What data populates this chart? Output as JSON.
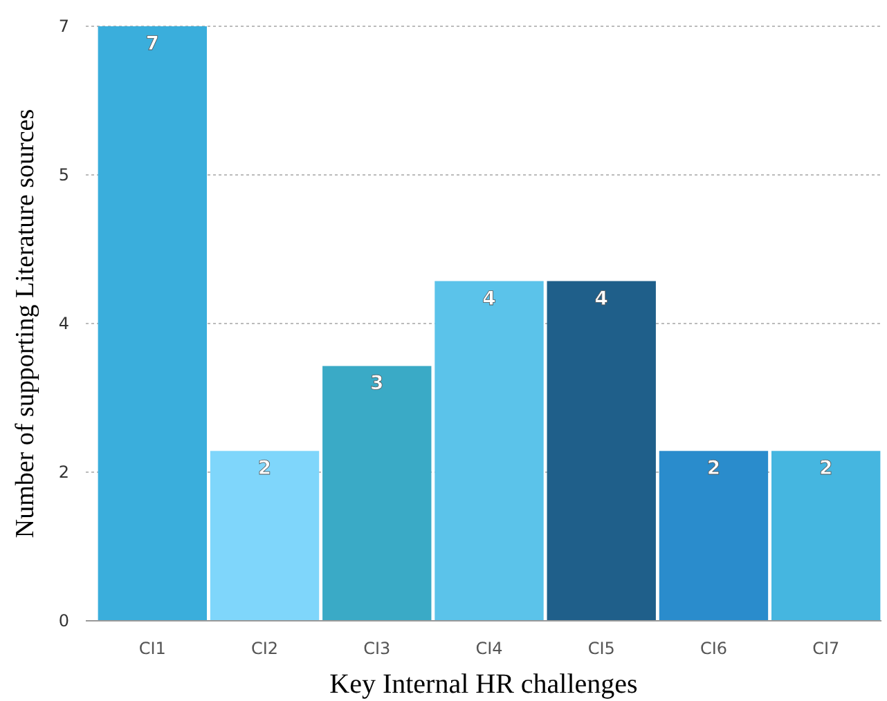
{
  "chart_data": {
    "type": "bar",
    "xlabel": "Key Internal HR challenges",
    "ylabel": "Number of supporting Literature sources",
    "categories": [
      "CI1",
      "CI2",
      "CI3",
      "CI4",
      "CI5",
      "CI6",
      "CI7"
    ],
    "values": [
      7,
      2,
      3,
      4,
      4,
      2,
      2
    ],
    "colors": [
      "#3aaedc",
      "#7fd6fb",
      "#3aaac6",
      "#5bc3ea",
      "#1f5f8a",
      "#2a8ccc",
      "#45b6e0"
    ],
    "ylim": [
      0,
      7
    ],
    "yticks": [
      0,
      {
        "value": 1.75,
        "label": "2"
      },
      {
        "value": 3.5,
        "label": "4"
      },
      {
        "value": 5.25,
        "label": "5"
      },
      7
    ],
    "grid": "y",
    "data_labels": true
  }
}
